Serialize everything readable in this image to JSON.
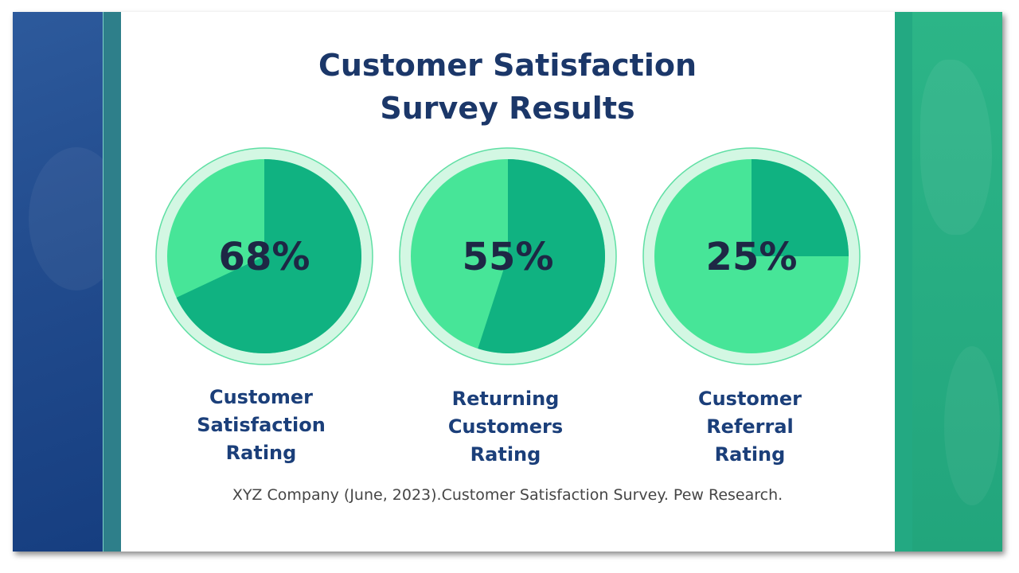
{
  "title": {
    "line1": "Customer Satisfaction",
    "line2": "Survey Results"
  },
  "chart_data": {
    "type": "pie",
    "charts": [
      {
        "value": 68,
        "value_label": "68%",
        "label_lines": [
          "Customer",
          "Satisfaction",
          "Rating"
        ]
      },
      {
        "value": 55,
        "value_label": "55%",
        "label_lines": [
          "Returning",
          "Customers",
          "Rating"
        ]
      },
      {
        "value": 25,
        "value_label": "25%",
        "label_lines": [
          "Customer",
          "Referral",
          "Rating"
        ]
      }
    ]
  },
  "source": "XYZ Company (June, 2023).Customer Satisfaction Survey. Pew Research.",
  "colors": {
    "dark_slice": "#10b281",
    "light_slice": "#47e598",
    "ring": "#d3f7e3",
    "ring_stroke": "#5fdfa4",
    "value_text": "#1e2745",
    "title": "#1b3769",
    "label": "#1b3f7a"
  }
}
